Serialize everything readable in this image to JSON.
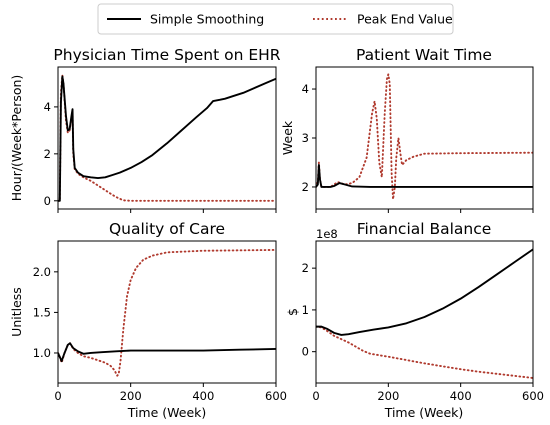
{
  "legend": {
    "entries": [
      {
        "label": "Simple Smoothing",
        "color": "#000000",
        "style": "solid"
      },
      {
        "label": "Peak End Value",
        "color": "#b03a2e",
        "style": "dotted"
      }
    ],
    "placement": "top-center"
  },
  "chart_data": [
    {
      "type": "line",
      "title": "Physician Time Spent on EHR",
      "xlabel": "",
      "ylabel": "Hour/(Week*Person)",
      "xlim": [
        0,
        600
      ],
      "ylim": [
        -0.35,
        5.7
      ],
      "x_ticks": [
        0,
        200,
        400,
        600
      ],
      "show_x_tick_labels": false,
      "y_ticks": [
        0,
        2,
        4
      ],
      "y_tick_labels": [
        "0",
        "2",
        "4"
      ],
      "series": [
        {
          "name": "Simple Smoothing",
          "color": "#000000",
          "style": "solid",
          "points": [
            [
              0,
              0
            ],
            [
              5,
              0
            ],
            [
              8,
              4.2
            ],
            [
              12,
              5.3
            ],
            [
              15,
              5.0
            ],
            [
              22,
              3.6
            ],
            [
              27,
              3.0
            ],
            [
              32,
              3.05
            ],
            [
              37,
              3.6
            ],
            [
              40,
              3.9
            ],
            [
              42,
              2.2
            ],
            [
              46,
              1.4
            ],
            [
              55,
              1.2
            ],
            [
              70,
              1.05
            ],
            [
              90,
              1.0
            ],
            [
              110,
              0.97
            ],
            [
              130,
              1.0
            ],
            [
              150,
              1.1
            ],
            [
              170,
              1.2
            ],
            [
              200,
              1.4
            ],
            [
              230,
              1.65
            ],
            [
              260,
              1.95
            ],
            [
              300,
              2.45
            ],
            [
              340,
              3.0
            ],
            [
              380,
              3.55
            ],
            [
              410,
              3.95
            ],
            [
              427,
              4.25
            ],
            [
              445,
              4.3
            ],
            [
              460,
              4.35
            ],
            [
              480,
              4.45
            ],
            [
              510,
              4.6
            ],
            [
              540,
              4.8
            ],
            [
              570,
              5.0
            ],
            [
              600,
              5.2
            ]
          ]
        },
        {
          "name": "Peak End Value",
          "color": "#b03a2e",
          "style": "dotted",
          "points": [
            [
              0,
              0
            ],
            [
              5,
              0
            ],
            [
              8,
              4.6
            ],
            [
              12,
              5.35
            ],
            [
              15,
              5.0
            ],
            [
              22,
              3.4
            ],
            [
              27,
              2.9
            ],
            [
              32,
              3.0
            ],
            [
              37,
              3.5
            ],
            [
              40,
              3.8
            ],
            [
              42,
              2.0
            ],
            [
              46,
              1.35
            ],
            [
              55,
              1.15
            ],
            [
              70,
              1.0
            ],
            [
              90,
              0.85
            ],
            [
              110,
              0.65
            ],
            [
              130,
              0.45
            ],
            [
              150,
              0.25
            ],
            [
              165,
              0.12
            ],
            [
              180,
              0.02
            ],
            [
              200,
              0
            ],
            [
              600,
              0
            ]
          ]
        }
      ]
    },
    {
      "type": "line",
      "title": "Patient Wait Time",
      "xlabel": "",
      "ylabel": "Week",
      "xlim": [
        0,
        600
      ],
      "ylim": [
        1.55,
        4.45
      ],
      "x_ticks": [
        0,
        200,
        400,
        600
      ],
      "show_x_tick_labels": false,
      "y_ticks": [
        2,
        3,
        4
      ],
      "y_tick_labels": [
        "2",
        "3",
        "4"
      ],
      "series": [
        {
          "name": "Simple Smoothing",
          "color": "#000000",
          "style": "solid",
          "points": [
            [
              0,
              2.0
            ],
            [
              5,
              2.05
            ],
            [
              8,
              2.45
            ],
            [
              11,
              2.15
            ],
            [
              15,
              2.0
            ],
            [
              25,
              2.0
            ],
            [
              40,
              2.0
            ],
            [
              50,
              2.02
            ],
            [
              65,
              2.08
            ],
            [
              80,
              2.05
            ],
            [
              100,
              2.01
            ],
            [
              150,
              2.0
            ],
            [
              200,
              2.0
            ],
            [
              300,
              2.0
            ],
            [
              600,
              2.0
            ]
          ]
        },
        {
          "name": "Peak End Value",
          "color": "#b03a2e",
          "style": "dotted",
          "points": [
            [
              0,
              2.0
            ],
            [
              5,
              2.1
            ],
            [
              8,
              2.5
            ],
            [
              11,
              2.15
            ],
            [
              15,
              2.0
            ],
            [
              40,
              2.0
            ],
            [
              60,
              2.1
            ],
            [
              80,
              2.05
            ],
            [
              100,
              2.08
            ],
            [
              120,
              2.2
            ],
            [
              140,
              2.6
            ],
            [
              155,
              3.5
            ],
            [
              162,
              3.75
            ],
            [
              168,
              3.4
            ],
            [
              175,
              2.5
            ],
            [
              182,
              2.2
            ],
            [
              190,
              3.5
            ],
            [
              196,
              4.2
            ],
            [
              200,
              4.3
            ],
            [
              204,
              4.1
            ],
            [
              209,
              2.3
            ],
            [
              213,
              1.75
            ],
            [
              218,
              2.0
            ],
            [
              222,
              2.6
            ],
            [
              228,
              3.0
            ],
            [
              233,
              2.7
            ],
            [
              238,
              2.45
            ],
            [
              250,
              2.55
            ],
            [
              270,
              2.62
            ],
            [
              300,
              2.68
            ],
            [
              400,
              2.69
            ],
            [
              600,
              2.7
            ]
          ]
        }
      ]
    },
    {
      "type": "line",
      "title": "Quality of Care",
      "xlabel": "Time (Week)",
      "ylabel": "Unitless",
      "xlim": [
        0,
        600
      ],
      "ylim": [
        0.63,
        2.38
      ],
      "x_ticks": [
        0,
        200,
        400,
        600
      ],
      "show_x_tick_labels": true,
      "x_tick_labels": [
        "0",
        "200",
        "400",
        "600"
      ],
      "y_ticks": [
        1.0,
        1.5,
        2.0
      ],
      "y_tick_labels": [
        "1.0",
        "1.5",
        "2.0"
      ],
      "series": [
        {
          "name": "Simple Smoothing",
          "color": "#000000",
          "style": "solid",
          "points": [
            [
              0,
              1.0
            ],
            [
              5,
              0.95
            ],
            [
              10,
              0.9
            ],
            [
              18,
              1.0
            ],
            [
              27,
              1.1
            ],
            [
              33,
              1.12
            ],
            [
              42,
              1.06
            ],
            [
              55,
              1.02
            ],
            [
              70,
              0.99
            ],
            [
              90,
              1.0
            ],
            [
              120,
              1.01
            ],
            [
              160,
              1.02
            ],
            [
              200,
              1.03
            ],
            [
              300,
              1.03
            ],
            [
              400,
              1.03
            ],
            [
              500,
              1.04
            ],
            [
              600,
              1.05
            ]
          ]
        },
        {
          "name": "Peak End Value",
          "color": "#b03a2e",
          "style": "dotted",
          "points": [
            [
              0,
              1.0
            ],
            [
              5,
              0.95
            ],
            [
              10,
              0.88
            ],
            [
              18,
              1.0
            ],
            [
              27,
              1.1
            ],
            [
              33,
              1.12
            ],
            [
              42,
              1.05
            ],
            [
              55,
              1.0
            ],
            [
              70,
              0.96
            ],
            [
              90,
              0.94
            ],
            [
              110,
              0.91
            ],
            [
              130,
              0.88
            ],
            [
              145,
              0.84
            ],
            [
              155,
              0.79
            ],
            [
              163,
              0.72
            ],
            [
              167,
              0.74
            ],
            [
              172,
              0.9
            ],
            [
              180,
              1.3
            ],
            [
              190,
              1.7
            ],
            [
              200,
              1.9
            ],
            [
              215,
              2.05
            ],
            [
              235,
              2.15
            ],
            [
              260,
              2.2
            ],
            [
              300,
              2.24
            ],
            [
              400,
              2.26
            ],
            [
              600,
              2.27
            ]
          ]
        }
      ]
    },
    {
      "type": "line",
      "title": "Financial Balance",
      "xlabel": "Time (Week)",
      "ylabel": "$",
      "scale_label": "1e8",
      "xlim": [
        0,
        600
      ],
      "ylim": [
        -0.75,
        2.65
      ],
      "x_ticks": [
        0,
        200,
        400,
        600
      ],
      "show_x_tick_labels": true,
      "x_tick_labels": [
        "0",
        "200",
        "400",
        "600"
      ],
      "y_ticks": [
        0,
        1,
        2
      ],
      "y_tick_labels": [
        "0",
        "1",
        "2"
      ],
      "series": [
        {
          "name": "Simple Smoothing",
          "color": "#000000",
          "style": "solid",
          "points": [
            [
              0,
              0.6
            ],
            [
              15,
              0.6
            ],
            [
              30,
              0.55
            ],
            [
              50,
              0.45
            ],
            [
              70,
              0.4
            ],
            [
              90,
              0.42
            ],
            [
              120,
              0.47
            ],
            [
              160,
              0.53
            ],
            [
              200,
              0.58
            ],
            [
              250,
              0.68
            ],
            [
              300,
              0.83
            ],
            [
              350,
              1.03
            ],
            [
              400,
              1.27
            ],
            [
              450,
              1.55
            ],
            [
              500,
              1.85
            ],
            [
              550,
              2.15
            ],
            [
              600,
              2.45
            ]
          ]
        },
        {
          "name": "Peak End Value",
          "color": "#b03a2e",
          "style": "dotted",
          "points": [
            [
              0,
              0.6
            ],
            [
              15,
              0.58
            ],
            [
              30,
              0.5
            ],
            [
              50,
              0.38
            ],
            [
              70,
              0.3
            ],
            [
              90,
              0.22
            ],
            [
              110,
              0.12
            ],
            [
              130,
              0.02
            ],
            [
              150,
              -0.05
            ],
            [
              200,
              -0.12
            ],
            [
              250,
              -0.2
            ],
            [
              300,
              -0.28
            ],
            [
              350,
              -0.35
            ],
            [
              400,
              -0.42
            ],
            [
              450,
              -0.48
            ],
            [
              500,
              -0.53
            ],
            [
              550,
              -0.58
            ],
            [
              600,
              -0.63
            ]
          ]
        }
      ]
    }
  ]
}
